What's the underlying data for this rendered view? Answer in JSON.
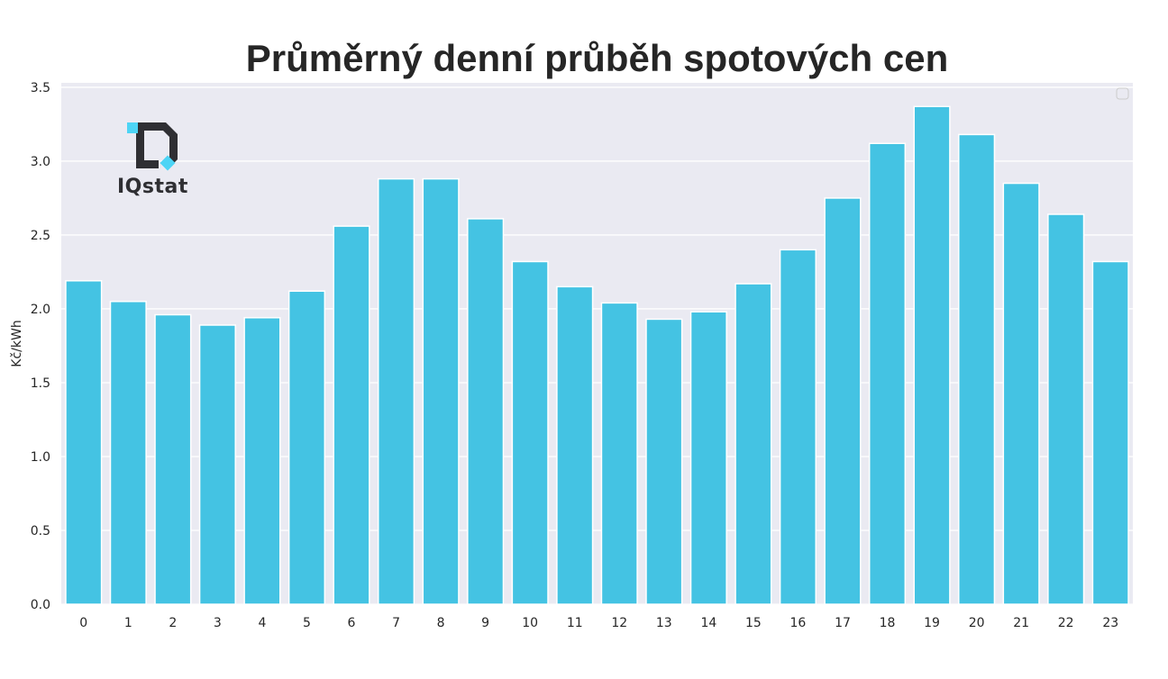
{
  "chart_data": {
    "type": "bar",
    "title": "Průměrný denní průběh spotových cen",
    "xlabel": "",
    "ylabel": "Kč/kWh",
    "categories": [
      "0",
      "1",
      "2",
      "3",
      "4",
      "5",
      "6",
      "7",
      "8",
      "9",
      "10",
      "11",
      "12",
      "13",
      "14",
      "15",
      "16",
      "17",
      "18",
      "19",
      "20",
      "21",
      "22",
      "23"
    ],
    "values": [
      2.19,
      2.05,
      1.96,
      1.89,
      1.94,
      2.12,
      2.56,
      2.88,
      2.88,
      2.61,
      2.32,
      2.15,
      2.04,
      1.93,
      1.98,
      2.17,
      2.4,
      2.75,
      3.12,
      3.37,
      3.18,
      2.85,
      2.64,
      2.32
    ],
    "yticks": [
      "0.0",
      "0.5",
      "1.0",
      "1.5",
      "2.0",
      "2.5",
      "3.0",
      "3.5"
    ],
    "ylim": [
      0,
      3.53
    ],
    "grid": true,
    "legend": "top-right (empty)",
    "bar_color": "#44c3e3",
    "plot_background": "#eaeaf2",
    "grid_color": "#ffffff"
  },
  "logo": {
    "text": "IQstat",
    "accent_color": "#4dd4f5",
    "dark_color": "#2f2f33"
  }
}
